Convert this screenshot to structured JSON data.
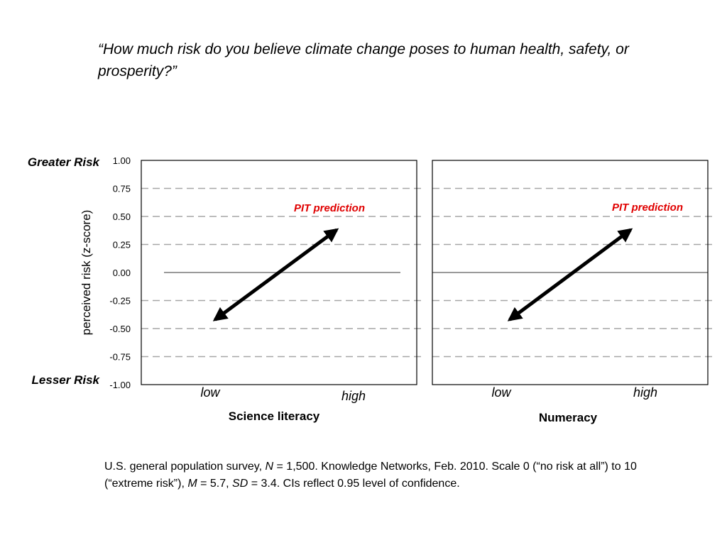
{
  "question": "“How much risk do you believe climate change poses to human health, safety, or prosperity?”",
  "labels": {
    "greater_risk": "Greater Risk",
    "lesser_risk": "Lesser Risk",
    "prediction": "PIT prediction",
    "low": "low",
    "high": "high"
  },
  "colors": {
    "prediction": "#e00000",
    "arrow": "#000000",
    "grid": "#a6a6a6"
  },
  "chart_data": [
    {
      "type": "line",
      "xlabel": "Science literacy",
      "ylabel": "perceived risk (z-score)",
      "ylim": [
        -1.0,
        1.0
      ],
      "yticks": [
        "1.00",
        "0.75",
        "0.50",
        "0.25",
        "0.00",
        "-0.25",
        "-0.50",
        "-0.75",
        "-1.00"
      ],
      "x_categories": [
        "low",
        "high"
      ],
      "grid": "horizontal dashed",
      "annotation": "PIT prediction",
      "arrow": {
        "from": -0.42,
        "to": 0.38
      }
    },
    {
      "type": "line",
      "xlabel": "Numeracy",
      "ylabel": "perceived risk (z-score)",
      "ylim": [
        -1.0,
        1.0
      ],
      "x_categories": [
        "low",
        "high"
      ],
      "grid": "horizontal dashed",
      "annotation": "PIT prediction",
      "arrow": {
        "from": -0.42,
        "to": 0.38
      }
    }
  ],
  "footnote": {
    "p1": "U.S. general population survey, ",
    "n_label": "N",
    "p2": " = 1,500. Knowledge Networks, Feb. 2010. Scale 0 (“no risk at all”) to 10 (“extreme risk”), ",
    "m_label": "M",
    "p3": " = 5.7, ",
    "sd_label": "SD",
    "p4": " = 3.4. CIs reflect 0.95 level of confidence."
  }
}
